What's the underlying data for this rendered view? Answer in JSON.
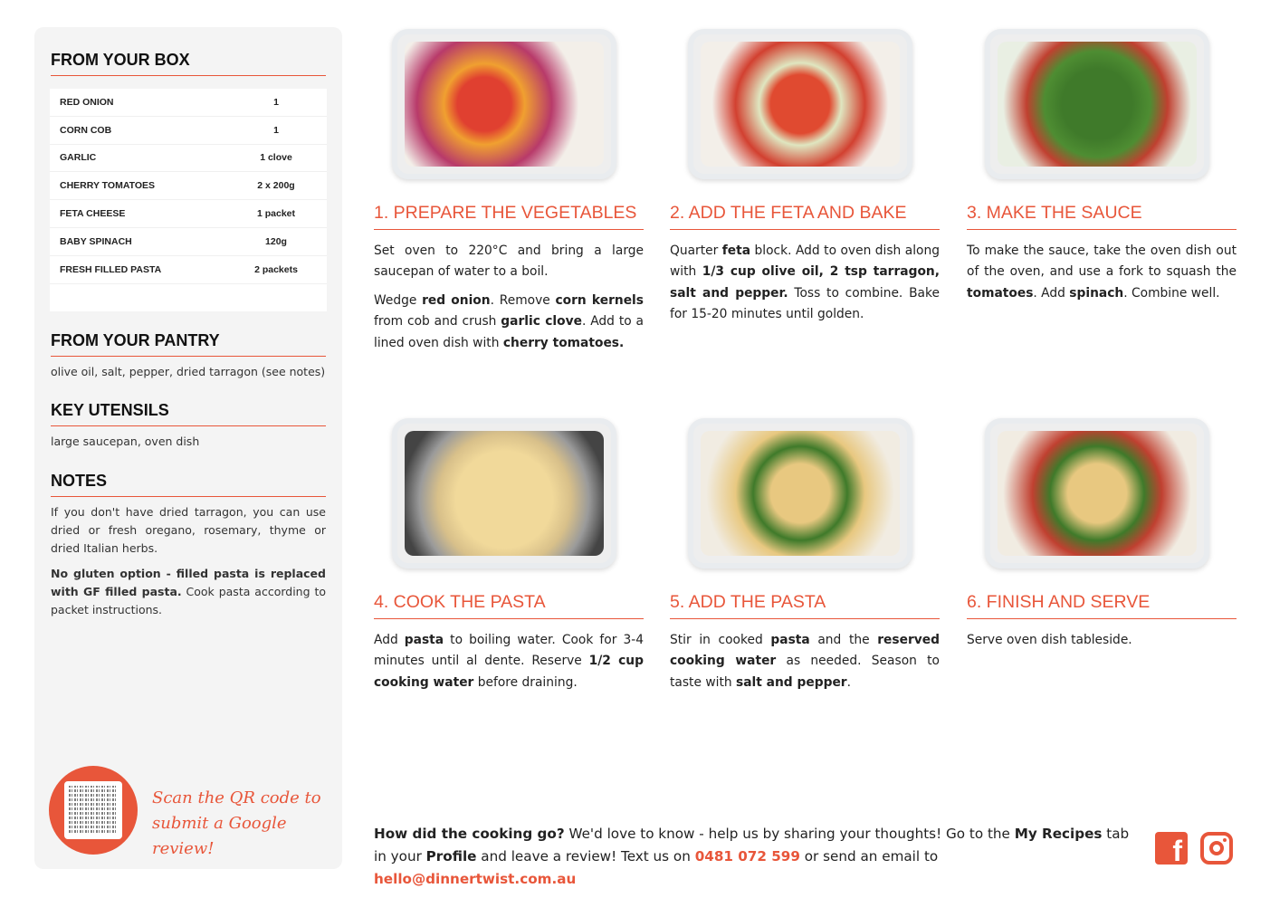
{
  "sidebar": {
    "box_title": "FROM YOUR BOX",
    "ingredients": [
      {
        "name": "RED ONION",
        "qty": "1"
      },
      {
        "name": "CORN COB",
        "qty": "1"
      },
      {
        "name": "GARLIC",
        "qty": "1 clove"
      },
      {
        "name": "CHERRY TOMATOES",
        "qty": "2 x 200g"
      },
      {
        "name": "FETA CHEESE",
        "qty": "1 packet"
      },
      {
        "name": "BABY SPINACH",
        "qty": "120g"
      },
      {
        "name": "FRESH FILLED PASTA",
        "qty": "2 packets"
      }
    ],
    "pantry_title": "FROM YOUR PANTRY",
    "pantry_text": "olive oil, salt, pepper, dried tarragon (see notes)",
    "utensils_title": "KEY UTENSILS",
    "utensils_text": "large saucepan, oven dish",
    "notes_title": "NOTES",
    "notes": [
      [
        {
          "t": "If you don't have dried tarragon, you can use dried or fresh oregano, rosemary, thyme or dried Italian herbs."
        }
      ],
      [
        {
          "t": "No gluten option - filled pasta is replaced with GF filled pasta.",
          "b": true
        },
        {
          "t": " Cook pasta according to packet instructions."
        }
      ]
    ],
    "qr_text_1": "Scan the QR code to",
    "qr_text_2": "submit a Google review!"
  },
  "steps": [
    {
      "title": "1. PREPARE THE VEGETABLES",
      "paras": [
        [
          {
            "t": "Set oven to 220°C and bring a large saucepan of water to a boil."
          }
        ],
        [
          {
            "t": "Wedge "
          },
          {
            "t": "red onion",
            "b": true
          },
          {
            "t": ". Remove "
          },
          {
            "t": "corn kernels",
            "b": true
          },
          {
            "t": " from cob and crush "
          },
          {
            "t": "garlic clove",
            "b": true
          },
          {
            "t": ". Add to a lined oven dish with "
          },
          {
            "t": "cherry tomatoes.",
            "b": true
          }
        ]
      ]
    },
    {
      "title": "2. ADD THE FETA AND BAKE",
      "paras": [
        [
          {
            "t": "Quarter "
          },
          {
            "t": "feta",
            "b": true
          },
          {
            "t": " block. Add to oven dish along with "
          },
          {
            "t": "1/3 cup olive oil, 2 tsp tarragon, salt and pepper.",
            "b": true
          },
          {
            "t": " Toss to combine. Bake for 15-20 minutes until golden."
          }
        ]
      ]
    },
    {
      "title": "3. MAKE THE SAUCE",
      "paras": [
        [
          {
            "t": "To make the sauce, take the oven dish out of the oven, and use a fork to squash the "
          },
          {
            "t": "tomatoes",
            "b": true
          },
          {
            "t": ". Add "
          },
          {
            "t": "spinach",
            "b": true
          },
          {
            "t": ". Combine well."
          }
        ]
      ]
    },
    {
      "title": "4. COOK THE PASTA",
      "paras": [
        [
          {
            "t": "Add "
          },
          {
            "t": "pasta",
            "b": true
          },
          {
            "t": " to boiling water. Cook for 3-4 minutes until al dente. Reserve "
          },
          {
            "t": "1/2 cup cooking water",
            "b": true
          },
          {
            "t": " before draining."
          }
        ]
      ]
    },
    {
      "title": "5. ADD THE PASTA",
      "paras": [
        [
          {
            "t": "Stir in cooked "
          },
          {
            "t": "pasta",
            "b": true
          },
          {
            "t": " and the "
          },
          {
            "t": "reserved cooking water",
            "b": true
          },
          {
            "t": " as needed. Season to taste with "
          },
          {
            "t": "salt and pepper",
            "b": true
          },
          {
            "t": "."
          }
        ]
      ]
    },
    {
      "title": "6. FINISH AND SERVE",
      "paras": [
        [
          {
            "t": "Serve oven dish tableside."
          }
        ]
      ]
    }
  ],
  "footer": [
    {
      "t": "How did the cooking go?",
      "b": true
    },
    {
      "t": " We'd love to know - help us by sharing your thoughts! Go to the "
    },
    {
      "t": "My Recipes",
      "b": true
    },
    {
      "t": " tab in your "
    },
    {
      "t": "Profile",
      "b": true
    },
    {
      "t": " and leave a review! Text us on "
    },
    {
      "t": "0481 072 599",
      "o": true
    },
    {
      "t": " or send an email to "
    },
    {
      "t": "hello@dinnertwist.com.au",
      "o": true
    }
  ],
  "icons": {
    "facebook": "facebook-icon",
    "instagram": "instagram-icon"
  },
  "colors": {
    "accent": "#e8563a",
    "sidebar_bg": "#f4f4f4"
  }
}
